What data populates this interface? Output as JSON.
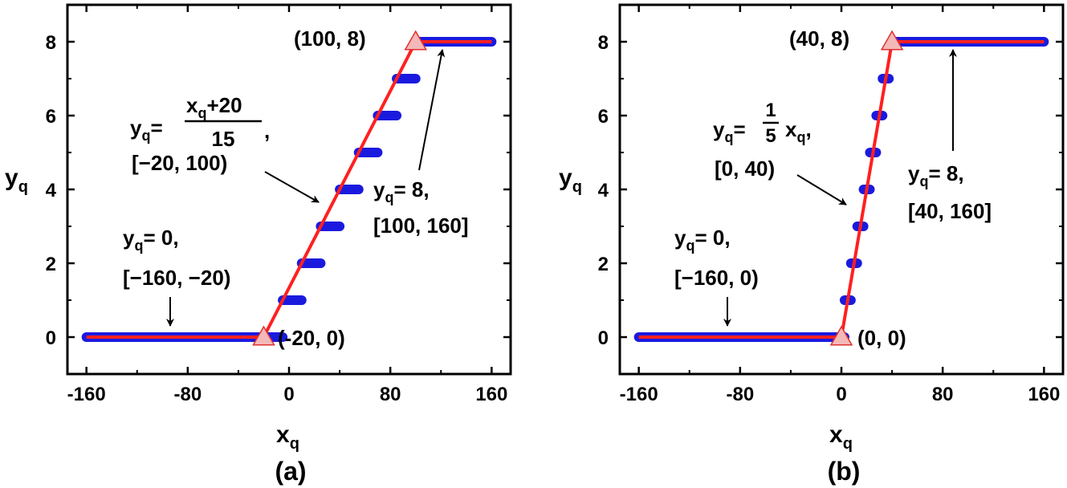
{
  "chart_data": [
    {
      "panel_label": "(a)",
      "type": "line",
      "xlabel": "x",
      "xlabel_sub": "q",
      "ylabel": "y",
      "ylabel_sub": "q",
      "xlim": [
        -175,
        175
      ],
      "ylim": [
        -1,
        9
      ],
      "xticks": [
        -160,
        -80,
        0,
        80,
        160
      ],
      "xtick_labels": [
        "-160",
        "-80",
        "0",
        "80",
        "160"
      ],
      "yticks": [
        0,
        2,
        4,
        6,
        8
      ],
      "ytick_labels": [
        "0",
        "2",
        "4",
        "6",
        "8"
      ],
      "colors": {
        "staircase": "#1a1adf",
        "fit": "#ff2020",
        "marker_fill": "#f4b8b8",
        "marker_stroke": "#e03030"
      },
      "series": [
        {
          "type": "staircase",
          "segments": [
            {
              "x": [
                -160,
                -20
              ],
              "y": 0
            },
            {
              "x": [
                -20,
                -5
              ],
              "y": 0
            },
            {
              "x": [
                -5,
                10
              ],
              "y": 1
            },
            {
              "x": [
                10,
                25
              ],
              "y": 2
            },
            {
              "x": [
                25,
                40
              ],
              "y": 3
            },
            {
              "x": [
                40,
                55
              ],
              "y": 4
            },
            {
              "x": [
                55,
                70
              ],
              "y": 5
            },
            {
              "x": [
                70,
                85
              ],
              "y": 6
            },
            {
              "x": [
                85,
                100
              ],
              "y": 7
            },
            {
              "x": [
                100,
                160
              ],
              "y": 8
            }
          ]
        },
        {
          "type": "fit_line",
          "points": [
            [
              -160,
              0
            ],
            [
              -20,
              0
            ],
            [
              100,
              8
            ],
            [
              160,
              8
            ]
          ]
        }
      ],
      "markers": [
        {
          "x": -20,
          "y": 0,
          "label": "(-20, 0)"
        },
        {
          "x": 100,
          "y": 8,
          "label": "(100, 8)"
        }
      ],
      "annotations": {
        "zero": {
          "base": "y",
          "sub": "q",
          "eq": "= 0,",
          "range": "[−160, −20)"
        },
        "mid": {
          "base": "y",
          "sub": "q",
          "eq": "=",
          "num_base": "x",
          "num_sub": "q",
          "num_rest": "+20",
          "den": "15",
          "after": ",",
          "range": "[−20, 100)"
        },
        "top": {
          "base": "y",
          "sub": "q",
          "eq": "= 8,",
          "range": "[100, 160]"
        }
      }
    },
    {
      "panel_label": "(b)",
      "type": "line",
      "xlabel": "x",
      "xlabel_sub": "q",
      "ylabel": "y",
      "ylabel_sub": "q",
      "xlim": [
        -175,
        175
      ],
      "ylim": [
        -1,
        9
      ],
      "xticks": [
        -160,
        -80,
        0,
        80,
        160
      ],
      "xtick_labels": [
        "-160",
        "-80",
        "0",
        "80",
        "160"
      ],
      "yticks": [
        0,
        2,
        4,
        6,
        8
      ],
      "ytick_labels": [
        "0",
        "2",
        "4",
        "6",
        "8"
      ],
      "colors": {
        "staircase": "#1a1adf",
        "fit": "#ff2020",
        "marker_fill": "#f4b8b8",
        "marker_stroke": "#e03030"
      },
      "series": [
        {
          "type": "staircase",
          "segments": [
            {
              "x": [
                -160,
                0
              ],
              "y": 0
            },
            {
              "x": [
                0,
                2.5
              ],
              "y": 0
            },
            {
              "x": [
                2.5,
                7.5
              ],
              "y": 1
            },
            {
              "x": [
                7.5,
                12.5
              ],
              "y": 2
            },
            {
              "x": [
                12.5,
                17.5
              ],
              "y": 3
            },
            {
              "x": [
                17.5,
                22.5
              ],
              "y": 4
            },
            {
              "x": [
                22.5,
                27.5
              ],
              "y": 5
            },
            {
              "x": [
                27.5,
                32.5
              ],
              "y": 6
            },
            {
              "x": [
                32.5,
                37.5
              ],
              "y": 7
            },
            {
              "x": [
                40,
                160
              ],
              "y": 8
            }
          ]
        },
        {
          "type": "fit_line",
          "points": [
            [
              -160,
              0
            ],
            [
              0,
              0
            ],
            [
              40,
              8
            ],
            [
              160,
              8
            ]
          ]
        }
      ],
      "markers": [
        {
          "x": 0,
          "y": 0,
          "label": "(0, 0)"
        },
        {
          "x": 40,
          "y": 8,
          "label": "(40, 8)"
        }
      ],
      "annotations": {
        "zero": {
          "base": "y",
          "sub": "q",
          "eq": "= 0,",
          "range": "[−160, 0)"
        },
        "mid": {
          "base": "y",
          "sub": "q",
          "eq": "=",
          "frac_num": "1",
          "frac_den": "5",
          "tail_base": "x",
          "tail_sub": "q",
          "after": ",",
          "range": "[0, 40)"
        },
        "top": {
          "base": "y",
          "sub": "q",
          "eq": "= 8,",
          "range": "[40, 160]"
        }
      }
    }
  ]
}
